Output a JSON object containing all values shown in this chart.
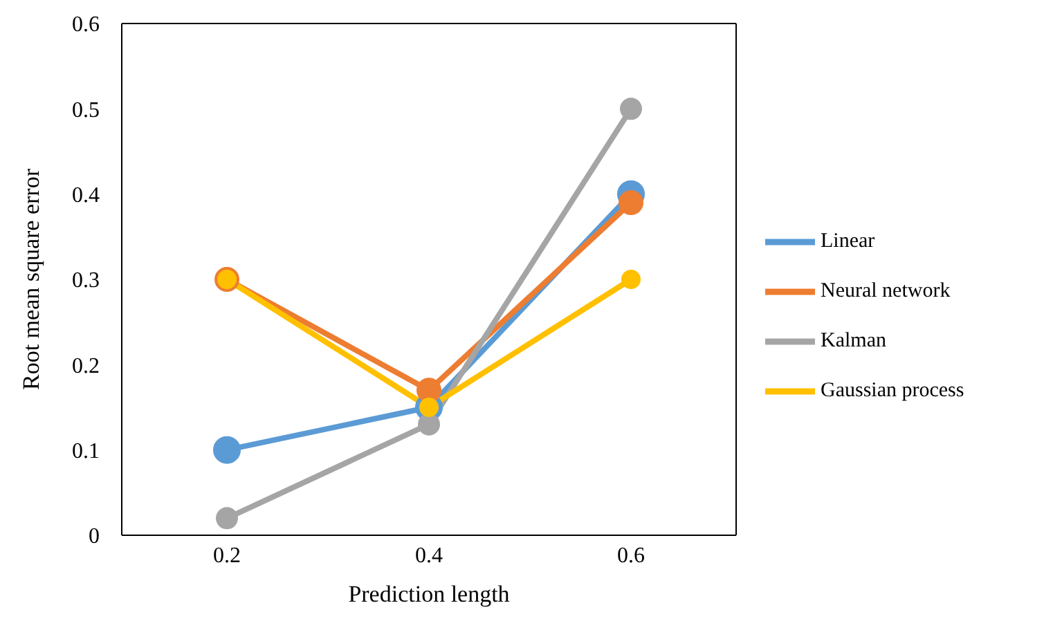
{
  "chart_data": {
    "type": "line",
    "xlabel": "Prediction length",
    "ylabel": "Root mean square error",
    "categories": [
      "0.2",
      "0.4",
      "0.6"
    ],
    "series": [
      {
        "name": "Linear",
        "color": "#5b9bd5",
        "values": [
          0.1,
          0.15,
          0.4
        ]
      },
      {
        "name": "Neural network",
        "color": "#ed7d31",
        "values": [
          0.3,
          0.17,
          0.39
        ]
      },
      {
        "name": "Kalman",
        "color": "#a5a5a5",
        "values": [
          0.02,
          0.13,
          0.5
        ]
      },
      {
        "name": "Gaussian process",
        "color": "#ffc000",
        "values": [
          0.3,
          0.15,
          0.3
        ]
      }
    ],
    "ylim": [
      0,
      0.6
    ],
    "yticks": [
      0,
      0.1,
      0.2,
      0.3,
      0.4,
      0.5,
      0.6
    ],
    "grid": false,
    "legend": "right",
    "marker": "circle",
    "line_style": "solid"
  }
}
